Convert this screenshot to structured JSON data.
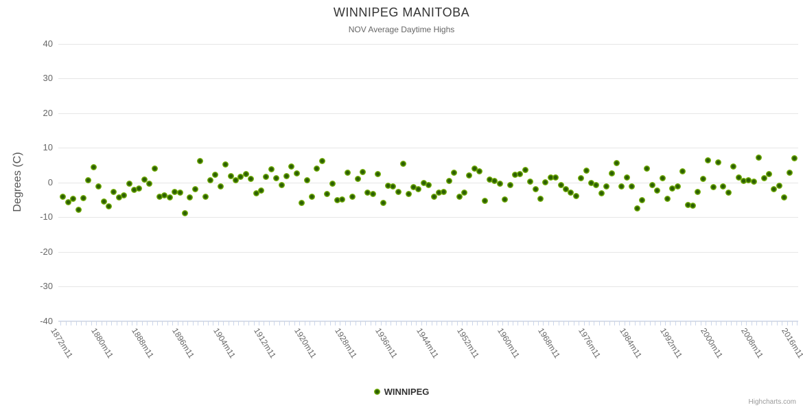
{
  "header": {
    "title": "WINNIPEG MANITOBA",
    "subtitle": "NOV Average Daytime Highs"
  },
  "legend": {
    "label": "WINNIPEG",
    "marker_color": "#74af09"
  },
  "credits": "Highcharts.com",
  "colors": {
    "point_outer": "#74af09",
    "point_inner": "#2c5f03",
    "gridline": "#e6e6e6",
    "axis_line": "#ccd6eb",
    "title_text": "#333333",
    "label_text": "#666666"
  },
  "chart_data": {
    "type": "scatter",
    "title": "WINNIPEG MANITOBA",
    "subtitle": "NOV Average Daytime Highs",
    "xlabel": "",
    "ylabel": "Degrees (C)",
    "ylim": [
      -40,
      40
    ],
    "y_ticks": [
      40,
      30,
      20,
      10,
      0,
      -10,
      -20,
      -30,
      -40
    ],
    "grid": true,
    "legend_position": "bottom",
    "x_tick_labels": [
      "1872m11",
      "1880m11",
      "1888m11",
      "1896m11",
      "1904m11",
      "1912m11",
      "1920m11",
      "1928m11",
      "1936m11",
      "1944m11",
      "1952m11",
      "1960m11",
      "1968m11",
      "1976m11",
      "1984m11",
      "1992m11",
      "2000m11",
      "2008m11",
      "2016m11"
    ],
    "x_start_year": 1872,
    "x_end_year": 2016,
    "series": [
      {
        "name": "WINNIPEG",
        "x_years_start": 1872,
        "values": [
          -4.1,
          -5.7,
          -4.7,
          -7.9,
          -4.5,
          0.6,
          4.3,
          -1.2,
          -5.6,
          -7.0,
          -2.7,
          -4.3,
          -3.7,
          -0.4,
          -2.1,
          -1.8,
          0.7,
          -0.4,
          4.0,
          -4.1,
          -3.7,
          -4.3,
          -2.7,
          -2.9,
          -8.9,
          -4.3,
          -2.0,
          6.1,
          -4.1,
          0.6,
          2.2,
          -1.2,
          5.1,
          1.7,
          0.6,
          1.5,
          2.4,
          0.9,
          -3.1,
          -2.4,
          1.6,
          3.8,
          1.1,
          -0.8,
          1.7,
          4.6,
          2.5,
          -6.0,
          0.6,
          -4.2,
          3.9,
          6.1,
          -3.3,
          -0.4,
          -5.1,
          -4.9,
          2.7,
          -4.2,
          1.0,
          3.0,
          -3.0,
          -3.3,
          2.4,
          -6.0,
          -1.0,
          -1.2,
          -2.7,
          5.3,
          -3.4,
          -1.3,
          -1.9,
          -0.2,
          -0.7,
          -4.1,
          -3.0,
          -2.7,
          0.3,
          2.7,
          -4.2,
          -3.0,
          2.0,
          3.9,
          3.1,
          -5.4,
          0.7,
          0.4,
          -0.3,
          -4.9,
          -0.8,
          2.2,
          2.4,
          3.5,
          0.2,
          -2.0,
          -4.7,
          0.0,
          1.4,
          1.4,
          -0.8,
          -1.9,
          -2.9,
          -3.9,
          1.1,
          3.3,
          -0.2,
          -0.7,
          -3.2,
          -1.2,
          2.5,
          5.5,
          -1.2,
          1.4,
          -1.2,
          -7.6,
          -5.1,
          3.9,
          -0.7,
          -2.4,
          1.2,
          -4.7,
          -1.7,
          -1.2,
          3.1,
          -6.5,
          -6.7,
          -2.7,
          1.0,
          6.3,
          -1.3,
          5.8,
          -1.2,
          -2.9,
          4.5,
          1.4,
          0.3,
          0.6,
          0.2,
          7.2,
          1.2,
          2.4,
          -1.9,
          -0.9,
          -4.3,
          2.8,
          7.0
        ]
      }
    ]
  }
}
